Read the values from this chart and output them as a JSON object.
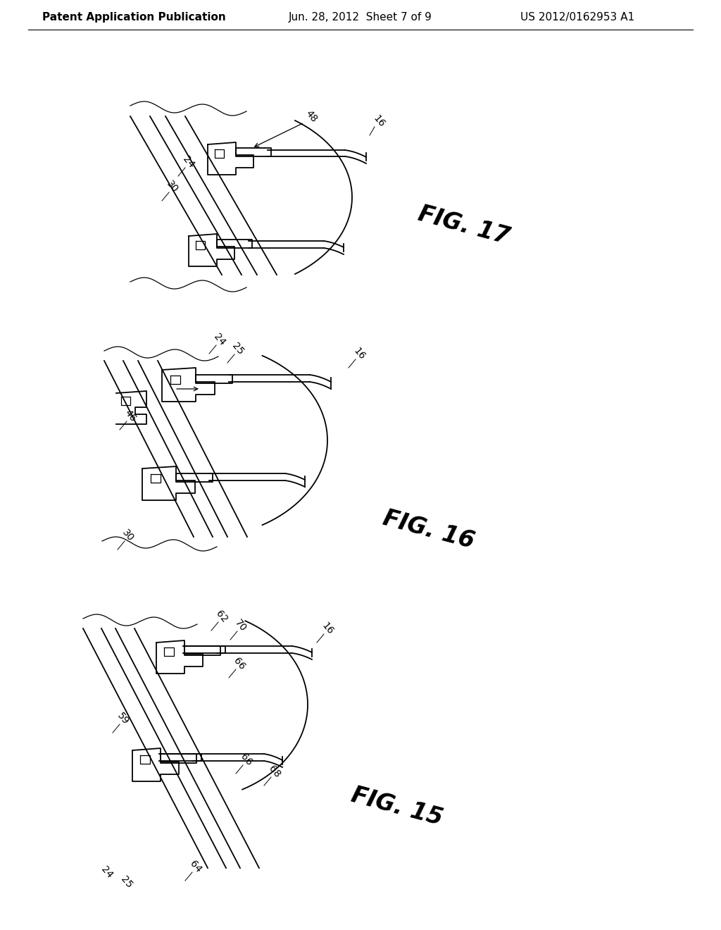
{
  "header_left": "Patent Application Publication",
  "header_center": "Jun. 28, 2012  Sheet 7 of 9",
  "header_right": "US 2012/0162953 A1",
  "fig17_label": "FIG. 17",
  "fig16_label": "FIG. 16",
  "fig15_label": "FIG. 15",
  "background_color": "#ffffff",
  "line_color": "#000000",
  "header_font_size": 11,
  "fig_label_font_size": 24,
  "ref_font_size": 11
}
